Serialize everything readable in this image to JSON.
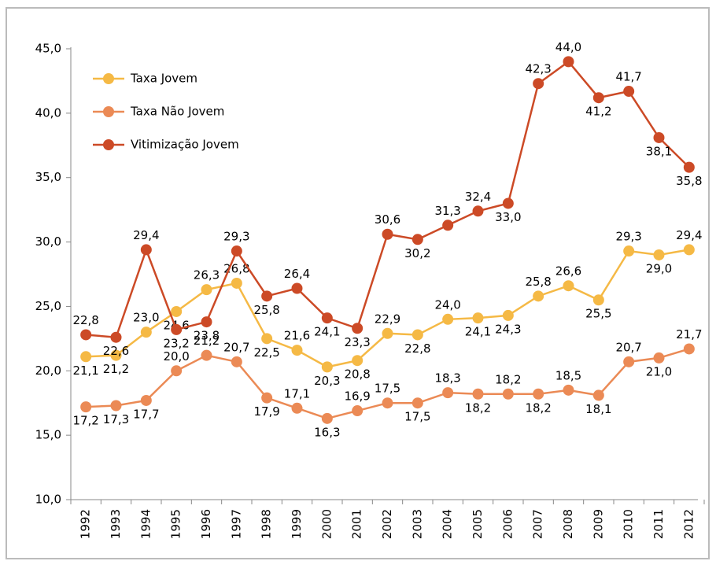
{
  "chart_data": {
    "type": "line",
    "categories": [
      "1992",
      "1993",
      "1994",
      "1995",
      "1996",
      "1997",
      "1998",
      "1999",
      "2000",
      "2001",
      "2002",
      "2003",
      "2004",
      "2005",
      "2006",
      "2007",
      "2008",
      "2009",
      "2010",
      "2011",
      "2012"
    ],
    "series": [
      {
        "name": "Taxa Jovem",
        "color": "#f5b945",
        "values": [
          21.1,
          21.2,
          23.0,
          24.6,
          26.3,
          26.8,
          22.5,
          21.6,
          20.3,
          20.8,
          22.9,
          22.8,
          24.0,
          24.1,
          24.3,
          25.8,
          26.6,
          25.5,
          29.3,
          29.0,
          29.4
        ],
        "value_labels": [
          "21,1",
          "21,2",
          "23,0",
          "24,6",
          "26,3",
          "26,8",
          "22,5",
          "21,6",
          "20,3",
          "20,8",
          "22,9",
          "22,8",
          "24,0",
          "24,1",
          "24,3",
          "25,8",
          "26,6",
          "25,5",
          "29,3",
          "29,0",
          "29,4"
        ]
      },
      {
        "name": "Taxa Não Jovem",
        "color": "#eb8a55",
        "values": [
          17.2,
          17.3,
          17.7,
          20.0,
          21.2,
          20.7,
          17.9,
          17.1,
          16.3,
          16.9,
          17.5,
          17.5,
          18.3,
          18.2,
          18.2,
          18.2,
          18.5,
          18.1,
          20.7,
          21.0,
          21.7
        ],
        "value_labels": [
          "17,2",
          "17,3",
          "17,7",
          "20,0",
          "21,2",
          "20,7",
          "17,9",
          "17,1",
          "16,3",
          "16,9",
          "17,5",
          "17,5",
          "18,3",
          "18,2",
          "18,2",
          "18,2",
          "18,5",
          "18,1",
          "20,7",
          "21,0",
          "21,7"
        ]
      },
      {
        "name": "Vitimização Jovem",
        "color": "#cc4a26",
        "values": [
          22.8,
          22.6,
          29.4,
          23.2,
          23.8,
          29.3,
          25.8,
          26.4,
          24.1,
          23.3,
          30.6,
          30.2,
          31.3,
          32.4,
          33.0,
          42.3,
          44.0,
          41.2,
          41.7,
          38.1,
          35.8
        ],
        "value_labels": [
          "22,8",
          "22,6",
          "29,4",
          "23,2",
          "23,8",
          "29,3",
          "25,8",
          "26,4",
          "24,1",
          "23,3",
          "30,6",
          "30,2",
          "31,3",
          "32,4",
          "33,0",
          "42,3",
          "44,0",
          "41,2",
          "41,7",
          "38,1",
          "35,8"
        ]
      }
    ],
    "ylim": [
      10,
      45
    ],
    "yticks": [
      {
        "value": 10,
        "label": "10,0"
      },
      {
        "value": 15,
        "label": "15,0"
      },
      {
        "value": 20,
        "label": "20,0"
      },
      {
        "value": 25,
        "label": "25,0"
      },
      {
        "value": 30,
        "label": "30,0"
      },
      {
        "value": 35,
        "label": "35,0"
      },
      {
        "value": 40,
        "label": "40,0"
      },
      {
        "value": 45,
        "label": "45,0"
      }
    ],
    "legend": "upper left"
  }
}
